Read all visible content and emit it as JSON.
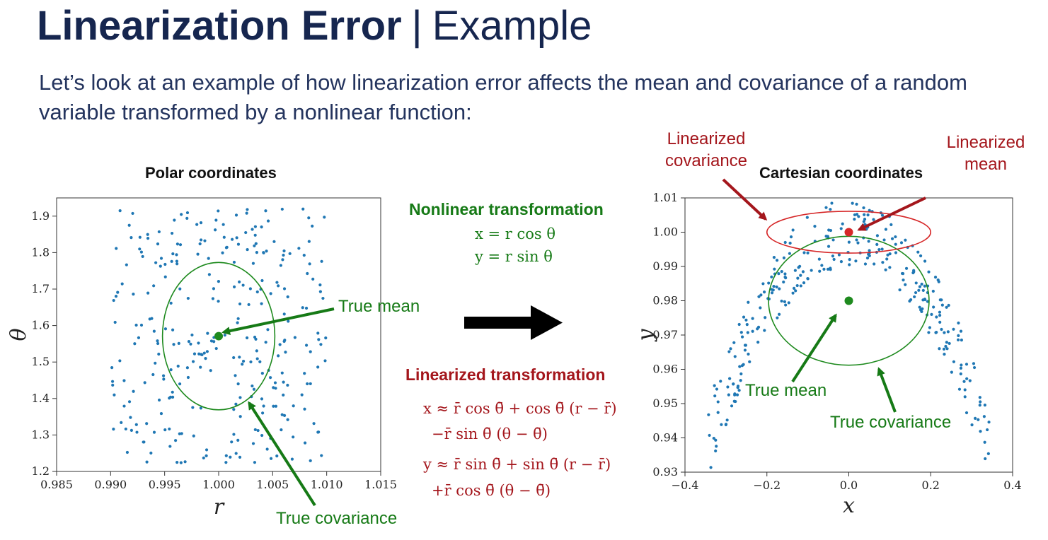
{
  "slide": {
    "title_bold": "Linearization Error",
    "title_sep": "|",
    "title_rest": "Example",
    "intro": "Let’s look at an example of how linearization error affects the mean and covariance of a random variable transformed by a nonlinear function:"
  },
  "equations": {
    "nonlinear_title": "Nonlinear transformation",
    "nonlinear_lines": [
      "x = r cos θ",
      "y = r sin θ"
    ],
    "linearized_title": "Linearized transformation",
    "linearized_lines": [
      "x ≈ r̄ cos θ̄ + cos θ̄ (r − r̄)",
      "−r̄ sin θ̄ (θ − θ̄)",
      "y ≈ r̄ sin θ̄ + sin θ̄ (r − r̄)",
      "+r̄ cos θ̄ (θ − θ̄)"
    ]
  },
  "annotations": {
    "left_true_mean": "True mean",
    "left_true_covariance": "True covariance",
    "right_linearized_covariance": "Linearized\ncovariance",
    "right_linearized_mean": "Linearized\nmean",
    "right_true_mean": "True mean",
    "right_true_covariance": "True covariance"
  },
  "colors": {
    "points": "#1f77b4",
    "true": "#1e8a1e",
    "true_dark": "#167a16",
    "linearized": "#d62728",
    "linearized_dark": "#a4161c",
    "arrow": "#000000"
  },
  "chart_data": [
    {
      "type": "scatter",
      "title": "Polar coordinates",
      "xlabel": "r",
      "ylabel": "θ",
      "xlim": [
        0.985,
        1.015
      ],
      "ylim": [
        1.2,
        1.95
      ],
      "xticks": [
        0.985,
        0.99,
        0.995,
        1.0,
        1.005,
        1.01,
        1.015
      ],
      "xtick_labels": [
        "0.985",
        "0.990",
        "0.995",
        "1.000",
        "1.005",
        "1.010",
        "1.015"
      ],
      "yticks": [
        1.2,
        1.3,
        1.4,
        1.5,
        1.6,
        1.7,
        1.8,
        1.9
      ],
      "ytick_labels": [
        "1.2",
        "1.3",
        "1.4",
        "1.5",
        "1.6",
        "1.7",
        "1.8",
        "1.9"
      ],
      "grid": false,
      "sample_distribution": {
        "shape": "uniform",
        "x_range": [
          0.99,
          1.01
        ],
        "y_range": [
          1.221,
          1.921
        ],
        "count": 300
      },
      "true_mean": {
        "x": 1.0,
        "y": 1.571
      },
      "true_covariance": {
        "center": [
          1.0,
          1.571
        ],
        "x_halfwidth": 0.0052,
        "y_halfwidth": 0.202
      }
    },
    {
      "type": "scatter",
      "title": "Cartesian coordinates",
      "xlabel": "x",
      "ylabel": "y",
      "xlim": [
        -0.4,
        0.4
      ],
      "ylim": [
        0.93,
        1.01
      ],
      "xticks": [
        -0.4,
        -0.2,
        0.0,
        0.2,
        0.4
      ],
      "xtick_labels": [
        "−0.4",
        "−0.2",
        "0.0",
        "0.2",
        "0.4"
      ],
      "yticks": [
        0.93,
        0.94,
        0.95,
        0.96,
        0.97,
        0.98,
        0.99,
        1.0,
        1.01
      ],
      "ytick_labels": [
        "0.93",
        "0.94",
        "0.95",
        "0.96",
        "0.97",
        "0.98",
        "0.99",
        "1.00",
        "1.01"
      ],
      "grid": false,
      "sample_distribution": {
        "shape": "polar-to-cartesian",
        "r_range": [
          0.99,
          1.01
        ],
        "theta_range": [
          1.221,
          1.921
        ],
        "count": 300
      },
      "true_mean": {
        "x": 0.0,
        "y": 0.98
      },
      "true_covariance": {
        "center": [
          0.0,
          0.98
        ],
        "x_halfwidth": 0.196,
        "y_halfwidth": 0.0188
      },
      "linearized_mean": {
        "x": 0.0,
        "y": 1.0
      },
      "linearized_covariance": {
        "center": [
          0.0,
          1.0
        ],
        "x_halfwidth": 0.2,
        "y_halfwidth": 0.0061
      }
    }
  ]
}
